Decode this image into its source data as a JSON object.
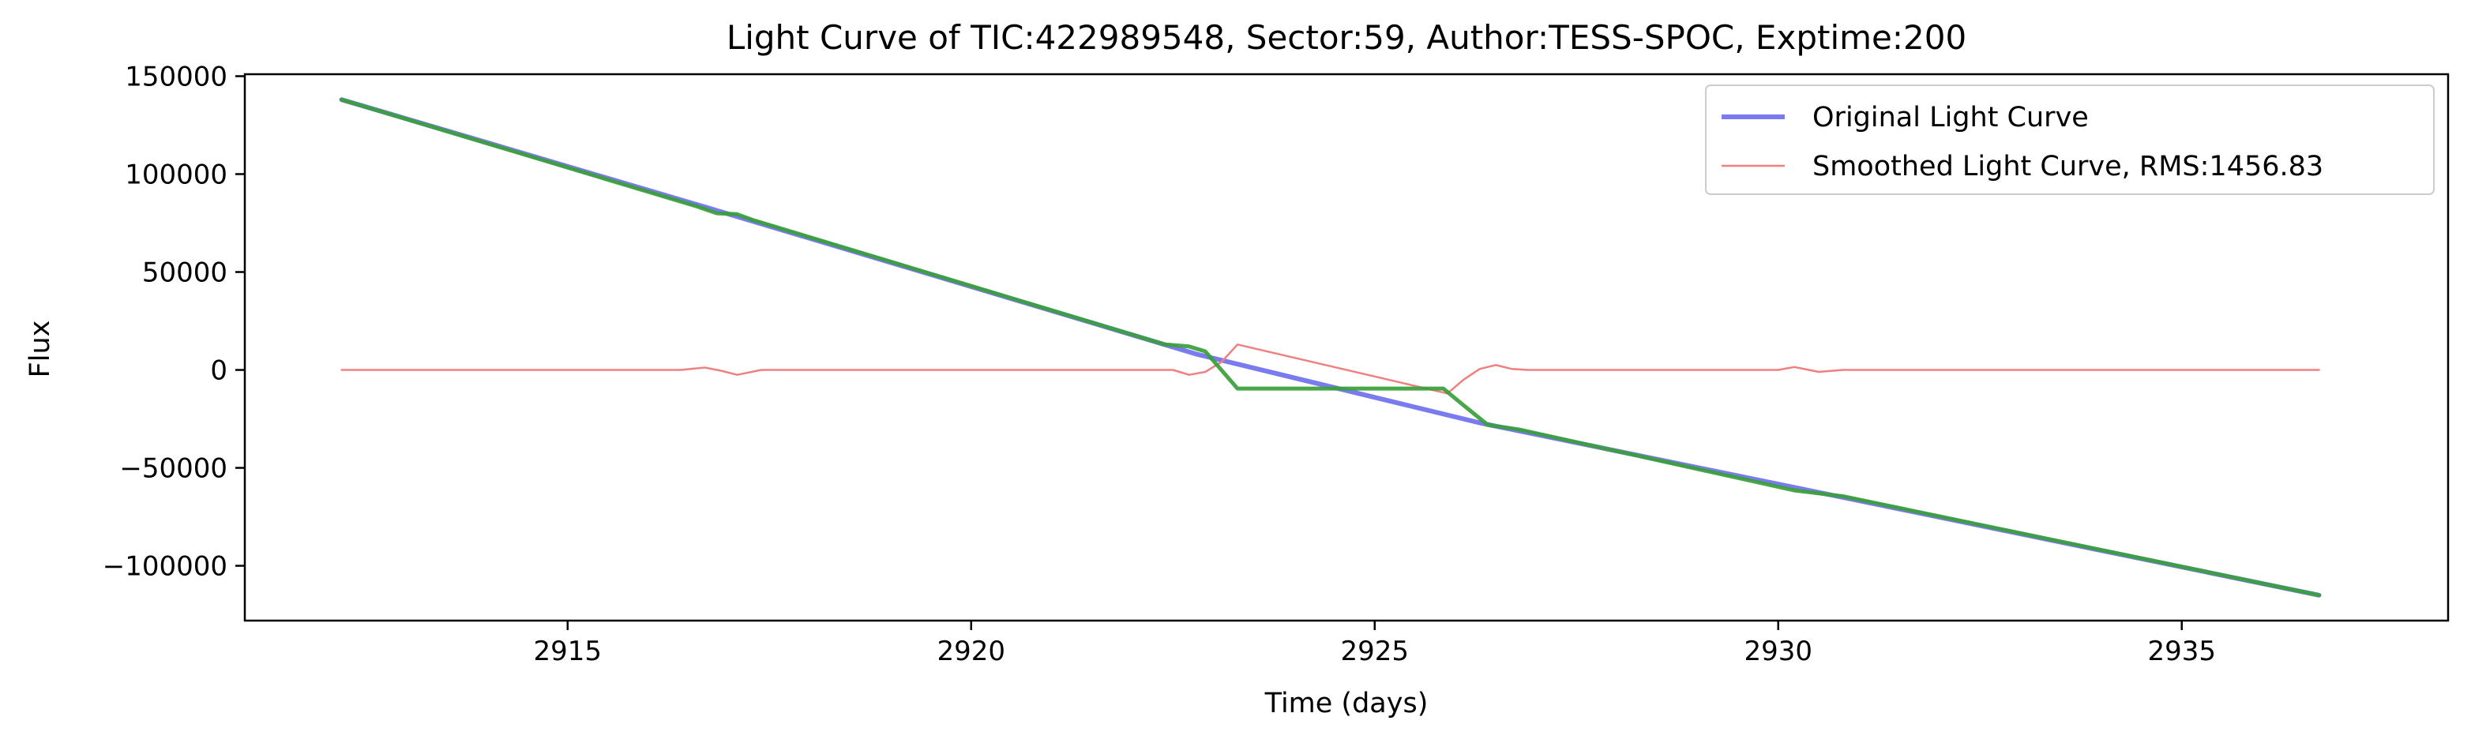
{
  "chart_data": {
    "type": "line",
    "title": "Light Curve of TIC:422989548, Sector:59, Author:TESS-SPOC, Exptime:200",
    "xlabel": "Time (days)",
    "ylabel": "Flux",
    "xlim": [
      2911.0,
      2938.3
    ],
    "ylim": [
      -128000,
      151000
    ],
    "x_ticks": [
      2915,
      2920,
      2925,
      2930,
      2935
    ],
    "x_tick_labels": [
      "2915",
      "2920",
      "2925",
      "2930",
      "2935"
    ],
    "y_ticks": [
      150000,
      100000,
      50000,
      0,
      -50000,
      -100000
    ],
    "y_tick_labels": [
      "150000",
      "100000",
      "50000",
      "0",
      "−50000",
      "−100000"
    ],
    "grid": false,
    "legend_position": "top-right",
    "series": [
      {
        "name": "Original Light Curve",
        "color": "#7b7bf0",
        "x": [
          2912.2,
          2916.8,
          2922.8,
          2926.3,
          2930.2,
          2936.7
        ],
        "y": [
          138000,
          82000,
          8000,
          -27000,
          -60000,
          -115000
        ]
      },
      {
        "name": "Smoothed Light Curve, RMS:1456.83",
        "color": "#f08080",
        "x": [
          2912.2,
          2916.4,
          2916.7,
          2916.9,
          2917.1,
          2917.4,
          2922.5,
          2922.7,
          2922.9,
          2923.1,
          2923.3,
          2925.9,
          2926.1,
          2926.3,
          2926.5,
          2926.7,
          2926.9,
          2930.0,
          2930.2,
          2930.5,
          2930.8,
          2936.7
        ],
        "y": [
          0,
          0,
          1200,
          -400,
          -2500,
          0,
          0,
          -2500,
          -1000,
          4000,
          13000,
          -12000,
          -5000,
          500,
          2500,
          500,
          0,
          0,
          1500,
          -1000,
          0,
          0
        ]
      },
      {
        "color": "#3a9e3a",
        "x": [
          2912.2,
          2916.6,
          2916.85,
          2917.1,
          2917.3,
          2922.4,
          2922.7,
          2922.9,
          2923.3,
          2925.85,
          2926.1,
          2926.4,
          2926.8,
          2930.2,
          2930.5,
          2930.8,
          2936.7
        ],
        "y": [
          138000,
          83500,
          80000,
          79500,
          76500,
          13000,
          12000,
          9500,
          -9500,
          -9500,
          -18000,
          -28000,
          -30500,
          -61500,
          -63000,
          -64500,
          -115000
        ]
      }
    ]
  }
}
